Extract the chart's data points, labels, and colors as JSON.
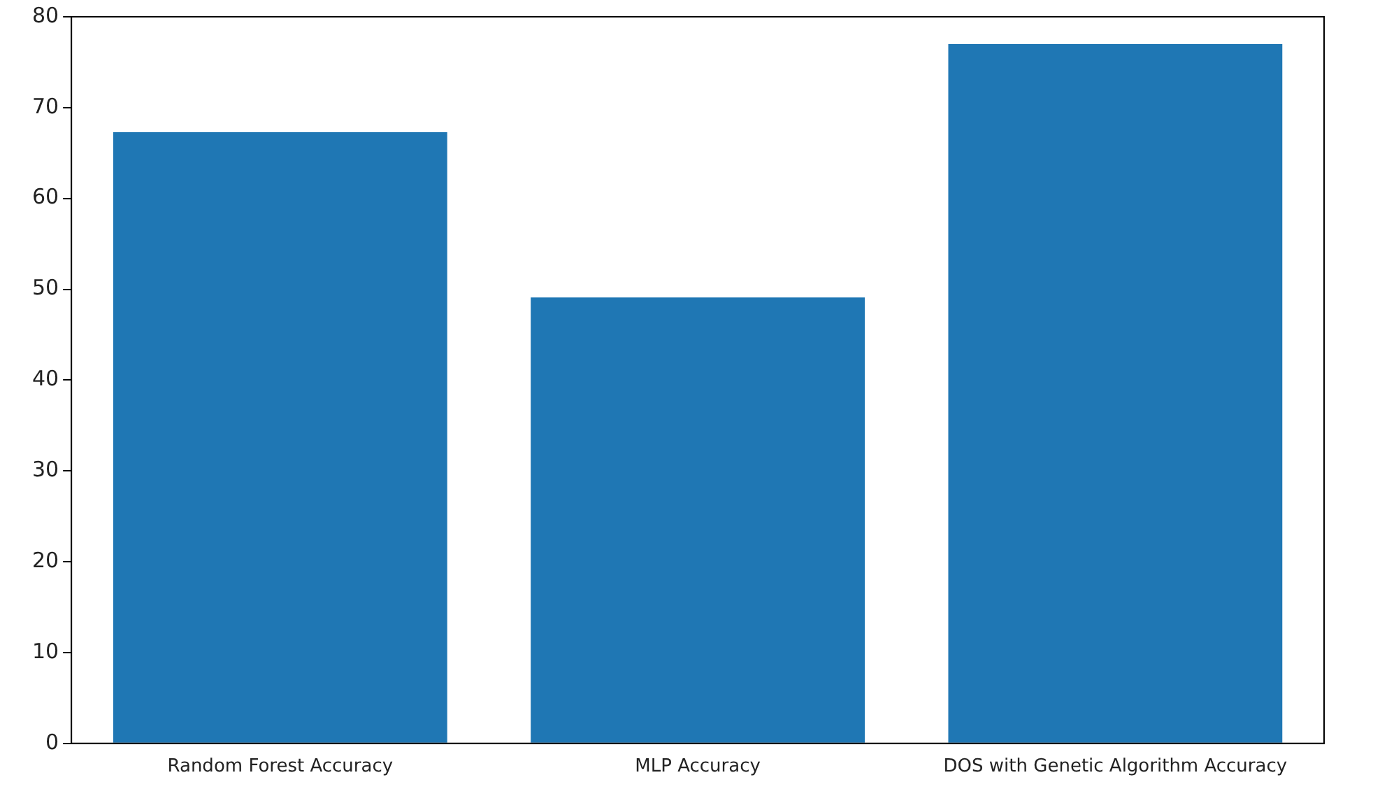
{
  "chart_data": {
    "type": "bar",
    "categories": [
      "Random Forest Accuracy",
      "MLP Accuracy",
      "DOS with Genetic Algorithm Accuracy"
    ],
    "values": [
      67.3,
      49.1,
      77.0
    ],
    "color": "#1f77b4",
    "ylim": [
      0,
      80
    ],
    "yticks": [
      0,
      10,
      20,
      30,
      40,
      50,
      60,
      70,
      80
    ],
    "grid": false,
    "legend": false
  }
}
